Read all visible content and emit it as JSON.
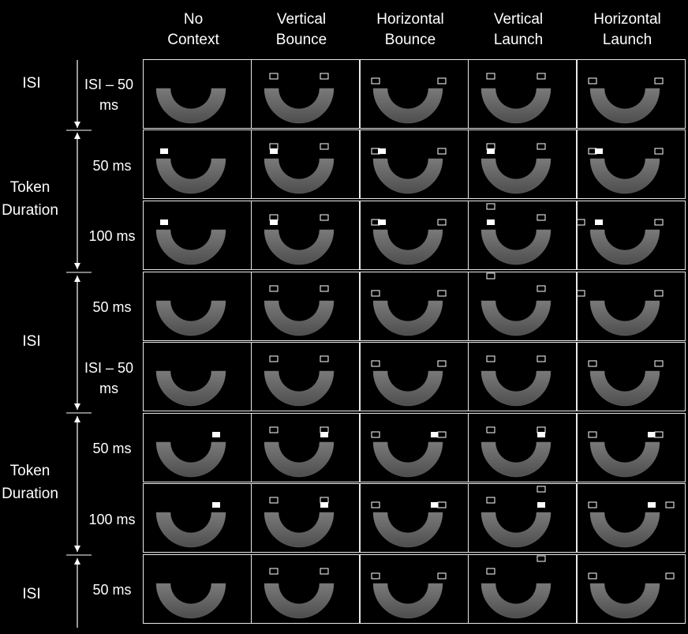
{
  "columns": [
    {
      "line1": "No",
      "line2": "Context"
    },
    {
      "line1": "Vertical",
      "line2": "Bounce"
    },
    {
      "line1": "Horizontal",
      "line2": "Bounce"
    },
    {
      "line1": "Vertical",
      "line2": "Launch"
    },
    {
      "line1": "Horizontal",
      "line2": "Launch"
    }
  ],
  "phase_labels": [
    {
      "line1": "ISI",
      "line2": ""
    },
    {
      "line1": "Token",
      "line2": "Duration"
    },
    {
      "line1": "ISI",
      "line2": ""
    },
    {
      "line1": "Token",
      "line2": "Duration"
    },
    {
      "line1": "ISI",
      "line2": ""
    }
  ],
  "row_durations": [
    {
      "line1": "ISI – 50",
      "line2": "ms"
    },
    {
      "line1": "50 ms",
      "line2": ""
    },
    {
      "line1": "100 ms",
      "line2": ""
    },
    {
      "line1": "50 ms",
      "line2": ""
    },
    {
      "line1": "ISI – 50",
      "line2": "ms"
    },
    {
      "line1": "50 ms",
      "line2": ""
    },
    {
      "line1": "100 ms",
      "line2": ""
    },
    {
      "line1": "50 ms",
      "line2": ""
    }
  ],
  "colors": {
    "background": "#000000",
    "frame": "#e8e8e8",
    "arc": "#6a6a6a",
    "token": "#ffffff"
  }
}
